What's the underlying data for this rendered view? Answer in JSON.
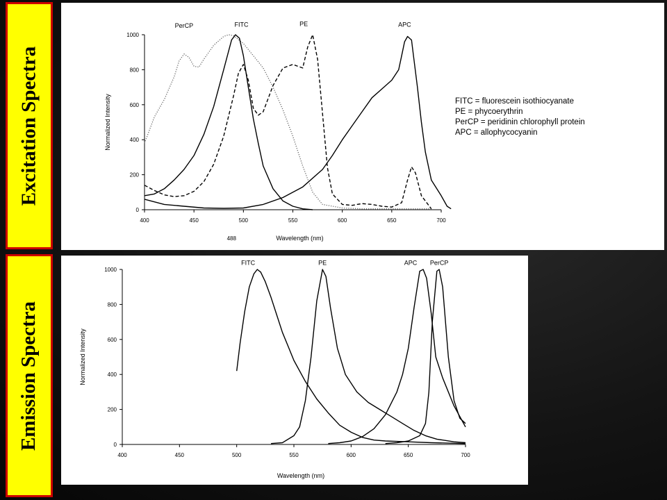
{
  "labels": {
    "excitation": "Excitation Spectra",
    "emission": "Emission Spectra"
  },
  "chart_data": [
    {
      "type": "line",
      "name": "excitation",
      "xlabel": "Wavelength (nm)",
      "ylabel": "Normalized Intensity",
      "xlim": [
        400,
        700
      ],
      "ylim": [
        0,
        1000
      ],
      "xticks": [
        400,
        450,
        500,
        550,
        600,
        650,
        700
      ],
      "yticks": [
        0,
        200,
        400,
        600,
        800,
        1000
      ],
      "annotation": "488",
      "annotation_x": 488,
      "grid": false,
      "legend_lines": [
        "FITC = fluorescein isothiocyanate",
        "PE = phycoerythrin",
        "PerCP = peridinin chlorophyll protein",
        "APC = allophycocyanin"
      ],
      "series": [
        {
          "name": "PerCP",
          "style": "dotted",
          "label_at": [
            440,
            1040
          ],
          "points": [
            [
              400,
              380
            ],
            [
              410,
              530
            ],
            [
              420,
              630
            ],
            [
              430,
              760
            ],
            [
              435,
              850
            ],
            [
              440,
              890
            ],
            [
              445,
              870
            ],
            [
              450,
              820
            ],
            [
              455,
              815
            ],
            [
              460,
              860
            ],
            [
              470,
              940
            ],
            [
              480,
              990
            ],
            [
              485,
              1000
            ],
            [
              490,
              995
            ],
            [
              500,
              950
            ],
            [
              510,
              880
            ],
            [
              520,
              810
            ],
            [
              530,
              700
            ],
            [
              540,
              570
            ],
            [
              550,
              420
            ],
            [
              560,
              250
            ],
            [
              570,
              100
            ],
            [
              580,
              30
            ],
            [
              600,
              10
            ],
            [
              620,
              5
            ],
            [
              650,
              5
            ],
            [
              690,
              5
            ]
          ]
        },
        {
          "name": "FITC",
          "style": "solid",
          "label_at": [
            498,
            1045
          ],
          "points": [
            [
              400,
              80
            ],
            [
              410,
              90
            ],
            [
              420,
              120
            ],
            [
              430,
              170
            ],
            [
              440,
              230
            ],
            [
              450,
              310
            ],
            [
              460,
              430
            ],
            [
              470,
              590
            ],
            [
              480,
              800
            ],
            [
              488,
              970
            ],
            [
              492,
              1000
            ],
            [
              496,
              980
            ],
            [
              500,
              880
            ],
            [
              505,
              700
            ],
            [
              510,
              520
            ],
            [
              515,
              380
            ],
            [
              520,
              250
            ],
            [
              530,
              120
            ],
            [
              540,
              50
            ],
            [
              550,
              20
            ],
            [
              560,
              5
            ],
            [
              570,
              0
            ]
          ]
        },
        {
          "name": "PE",
          "style": "dashed",
          "label_at": [
            561,
            1050
          ],
          "points": [
            [
              400,
              140
            ],
            [
              410,
              110
            ],
            [
              420,
              85
            ],
            [
              430,
              75
            ],
            [
              440,
              80
            ],
            [
              450,
              105
            ],
            [
              460,
              160
            ],
            [
              470,
              260
            ],
            [
              480,
              420
            ],
            [
              490,
              650
            ],
            [
              495,
              780
            ],
            [
              500,
              830
            ],
            [
              505,
              740
            ],
            [
              510,
              580
            ],
            [
              515,
              540
            ],
            [
              520,
              560
            ],
            [
              530,
              710
            ],
            [
              540,
              810
            ],
            [
              550,
              830
            ],
            [
              560,
              810
            ],
            [
              565,
              930
            ],
            [
              570,
              1000
            ],
            [
              575,
              860
            ],
            [
              580,
              550
            ],
            [
              585,
              240
            ],
            [
              590,
              90
            ],
            [
              600,
              30
            ],
            [
              610,
              25
            ],
            [
              620,
              35
            ],
            [
              630,
              30
            ],
            [
              640,
              20
            ],
            [
              650,
              15
            ],
            [
              660,
              40
            ],
            [
              666,
              170
            ],
            [
              670,
              245
            ],
            [
              674,
              210
            ],
            [
              680,
              80
            ],
            [
              690,
              5
            ]
          ]
        },
        {
          "name": "APC",
          "style": "solid",
          "label_at": [
            663,
            1045
          ],
          "points": [
            [
              400,
              60
            ],
            [
              420,
              30
            ],
            [
              440,
              20
            ],
            [
              460,
              10
            ],
            [
              480,
              8
            ],
            [
              500,
              10
            ],
            [
              520,
              30
            ],
            [
              540,
              70
            ],
            [
              560,
              130
            ],
            [
              580,
              230
            ],
            [
              590,
              310
            ],
            [
              600,
              400
            ],
            [
              610,
              480
            ],
            [
              620,
              560
            ],
            [
              630,
              640
            ],
            [
              640,
              690
            ],
            [
              650,
              740
            ],
            [
              657,
              800
            ],
            [
              660,
              880
            ],
            [
              663,
              960
            ],
            [
              666,
              990
            ],
            [
              670,
              970
            ],
            [
              672,
              880
            ],
            [
              676,
              700
            ],
            [
              680,
              500
            ],
            [
              684,
              330
            ],
            [
              690,
              170
            ],
            [
              700,
              80
            ],
            [
              706,
              20
            ],
            [
              710,
              5
            ]
          ]
        }
      ]
    },
    {
      "type": "line",
      "name": "emission",
      "xlabel": "Wavelength (nm)",
      "ylabel": "Normalized Intensity",
      "xlim": [
        400,
        700
      ],
      "ylim": [
        0,
        1000
      ],
      "xticks": [
        400,
        450,
        500,
        550,
        600,
        650,
        700
      ],
      "yticks": [
        0,
        200,
        400,
        600,
        800,
        1000
      ],
      "grid": false,
      "series": [
        {
          "name": "FITC",
          "style": "solid",
          "label_at": [
            510,
            1025
          ],
          "points": [
            [
              500,
              420
            ],
            [
              503,
              580
            ],
            [
              507,
              760
            ],
            [
              511,
              900
            ],
            [
              515,
              975
            ],
            [
              518,
              1000
            ],
            [
              521,
              985
            ],
            [
              525,
              930
            ],
            [
              530,
              840
            ],
            [
              535,
              740
            ],
            [
              540,
              640
            ],
            [
              545,
              560
            ],
            [
              550,
              480
            ],
            [
              560,
              360
            ],
            [
              570,
              260
            ],
            [
              580,
              180
            ],
            [
              590,
              110
            ],
            [
              600,
              70
            ],
            [
              610,
              40
            ],
            [
              620,
              25
            ],
            [
              630,
              20
            ],
            [
              650,
              15
            ],
            [
              670,
              10
            ],
            [
              700,
              5
            ]
          ]
        },
        {
          "name": "PE",
          "style": "solid",
          "label_at": [
            575,
            1025
          ],
          "points": [
            [
              530,
              5
            ],
            [
              540,
              10
            ],
            [
              550,
              50
            ],
            [
              555,
              100
            ],
            [
              560,
              250
            ],
            [
              565,
              500
            ],
            [
              570,
              820
            ],
            [
              575,
              1000
            ],
            [
              578,
              960
            ],
            [
              582,
              780
            ],
            [
              588,
              550
            ],
            [
              595,
              400
            ],
            [
              605,
              300
            ],
            [
              615,
              240
            ],
            [
              625,
              200
            ],
            [
              635,
              160
            ],
            [
              645,
              120
            ],
            [
              655,
              80
            ],
            [
              665,
              50
            ],
            [
              675,
              30
            ],
            [
              690,
              15
            ],
            [
              700,
              10
            ]
          ]
        },
        {
          "name": "APC",
          "style": "solid",
          "label_at": [
            652,
            1025
          ],
          "points": [
            [
              580,
              5
            ],
            [
              590,
              10
            ],
            [
              600,
              20
            ],
            [
              610,
              45
            ],
            [
              620,
              90
            ],
            [
              630,
              170
            ],
            [
              640,
              300
            ],
            [
              645,
              400
            ],
            [
              650,
              550
            ],
            [
              655,
              780
            ],
            [
              660,
              990
            ],
            [
              663,
              1000
            ],
            [
              666,
              950
            ],
            [
              670,
              750
            ],
            [
              674,
              500
            ],
            [
              680,
              380
            ],
            [
              690,
              220
            ],
            [
              700,
              100
            ]
          ]
        },
        {
          "name": "PerCP",
          "style": "solid",
          "label_at": [
            677,
            1025
          ],
          "points": [
            [
              630,
              5
            ],
            [
              640,
              10
            ],
            [
              650,
              20
            ],
            [
              660,
              50
            ],
            [
              665,
              120
            ],
            [
              668,
              300
            ],
            [
              671,
              700
            ],
            [
              675,
              990
            ],
            [
              677,
              1000
            ],
            [
              680,
              900
            ],
            [
              685,
              500
            ],
            [
              690,
              250
            ],
            [
              695,
              150
            ],
            [
              700,
              120
            ]
          ]
        }
      ]
    }
  ]
}
